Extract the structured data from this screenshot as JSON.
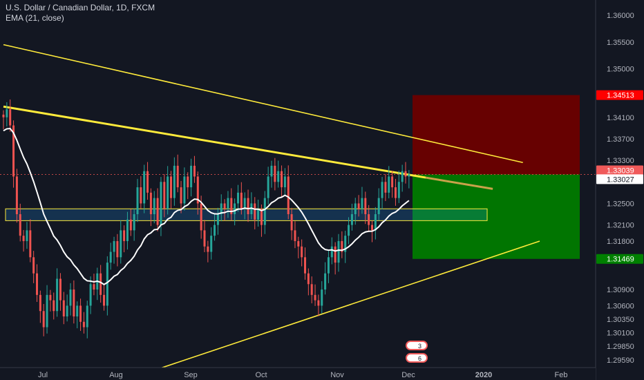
{
  "header": {
    "symbol_line": "U.S. Dollar / Canadian Dollar, 1D, FXCM",
    "indicator_line": "EMA (21, close)"
  },
  "colors": {
    "background": "#131722",
    "bull": "#26a69a",
    "bear": "#ef5350",
    "ema": "#ffffff",
    "trendline": "#ffeb3b",
    "stop_zone": "#6b0000",
    "target_zone": "#007a00",
    "stop_tag": "#ff0000",
    "last_tag": "#f05a5a",
    "ema_tag": "#ffffff",
    "target_tag": "#008000",
    "axis_text": "#b2b5be"
  },
  "chart_data": {
    "type": "candlestick",
    "title": "U.S. Dollar / Canadian Dollar, 1D, FXCM",
    "indicator": "EMA (21, close)",
    "ylim": [
      1.2945,
      1.3628
    ],
    "y_ticks": [
      "1.36000",
      "1.35500",
      "1.35000",
      "1.34513",
      "1.34100",
      "1.33700",
      "1.33300",
      "1.33039",
      "1.33027",
      "1.32500",
      "1.32100",
      "1.31800",
      "1.31469",
      "1.30900",
      "1.30600",
      "1.30350",
      "1.30100",
      "1.29850",
      "1.29590"
    ],
    "x_ticks": [
      "Jul",
      "Aug",
      "Sep",
      "Oct",
      "Nov",
      "Dec",
      "2020",
      "Feb"
    ],
    "price_tags": [
      {
        "label": "1.34513",
        "value": 1.34513,
        "role": "stop"
      },
      {
        "label": "1.33039",
        "value": 1.33039,
        "role": "last"
      },
      {
        "label": "1.33027",
        "value": 1.33027,
        "role": "ema"
      },
      {
        "label": "1.31469",
        "value": 1.31469,
        "role": "target"
      }
    ],
    "closes": [
      1.341,
      1.3425,
      1.3395,
      1.33,
      1.323,
      1.319,
      1.318,
      1.32,
      1.315,
      1.312,
      1.308,
      1.305,
      1.302,
      1.308,
      1.307,
      1.305,
      1.311,
      1.307,
      1.304,
      1.306,
      1.309,
      1.304,
      1.306,
      1.303,
      1.302,
      1.306,
      1.31,
      1.309,
      1.312,
      1.308,
      1.306,
      1.314,
      1.316,
      1.318,
      1.315,
      1.32,
      1.318,
      1.322,
      1.32,
      1.323,
      1.328,
      1.325,
      1.331,
      1.327,
      1.323,
      1.326,
      1.321,
      1.329,
      1.324,
      1.33,
      1.326,
      1.332,
      1.328,
      1.325,
      1.33,
      1.328,
      1.332,
      1.33,
      1.325,
      1.32,
      1.317,
      1.316,
      1.319,
      1.321,
      1.323,
      1.325,
      1.324,
      1.326,
      1.323,
      1.325,
      1.327,
      1.324,
      1.326,
      1.323,
      1.325,
      1.322,
      1.324,
      1.321,
      1.326,
      1.33,
      1.332,
      1.329,
      1.331,
      1.328,
      1.33,
      1.323,
      1.32,
      1.318,
      1.317,
      1.315,
      1.312,
      1.31,
      1.308,
      1.307,
      1.306,
      1.309,
      1.312,
      1.315,
      1.317,
      1.314,
      1.318,
      1.316,
      1.319,
      1.321,
      1.323,
      1.325,
      1.324,
      1.326,
      1.323,
      1.321,
      1.32,
      1.323,
      1.326,
      1.329,
      1.327,
      1.33,
      1.328,
      1.326,
      1.329,
      1.331,
      1.33,
      1.3304
    ],
    "ema21_start": 1.3385,
    "ema21_seed_closes": [
      1.341,
      1.3425
    ],
    "trendlines": [
      {
        "name": "upper-channel",
        "from": [
          0,
          1.3545
        ],
        "to": [
          155,
          1.3326
        ]
      },
      {
        "name": "main-resistance",
        "from": [
          0,
          1.343
        ],
        "to": [
          126,
          1.3298
        ]
      },
      {
        "name": "lower-support",
        "from": [
          45,
          1.294
        ],
        "to": [
          160,
          1.318
        ]
      }
    ],
    "support_zone": [
      1.3218,
      1.324
    ],
    "position": {
      "type": "short",
      "entry": 1.33039,
      "stop": 1.34513,
      "target": 1.31469
    }
  }
}
